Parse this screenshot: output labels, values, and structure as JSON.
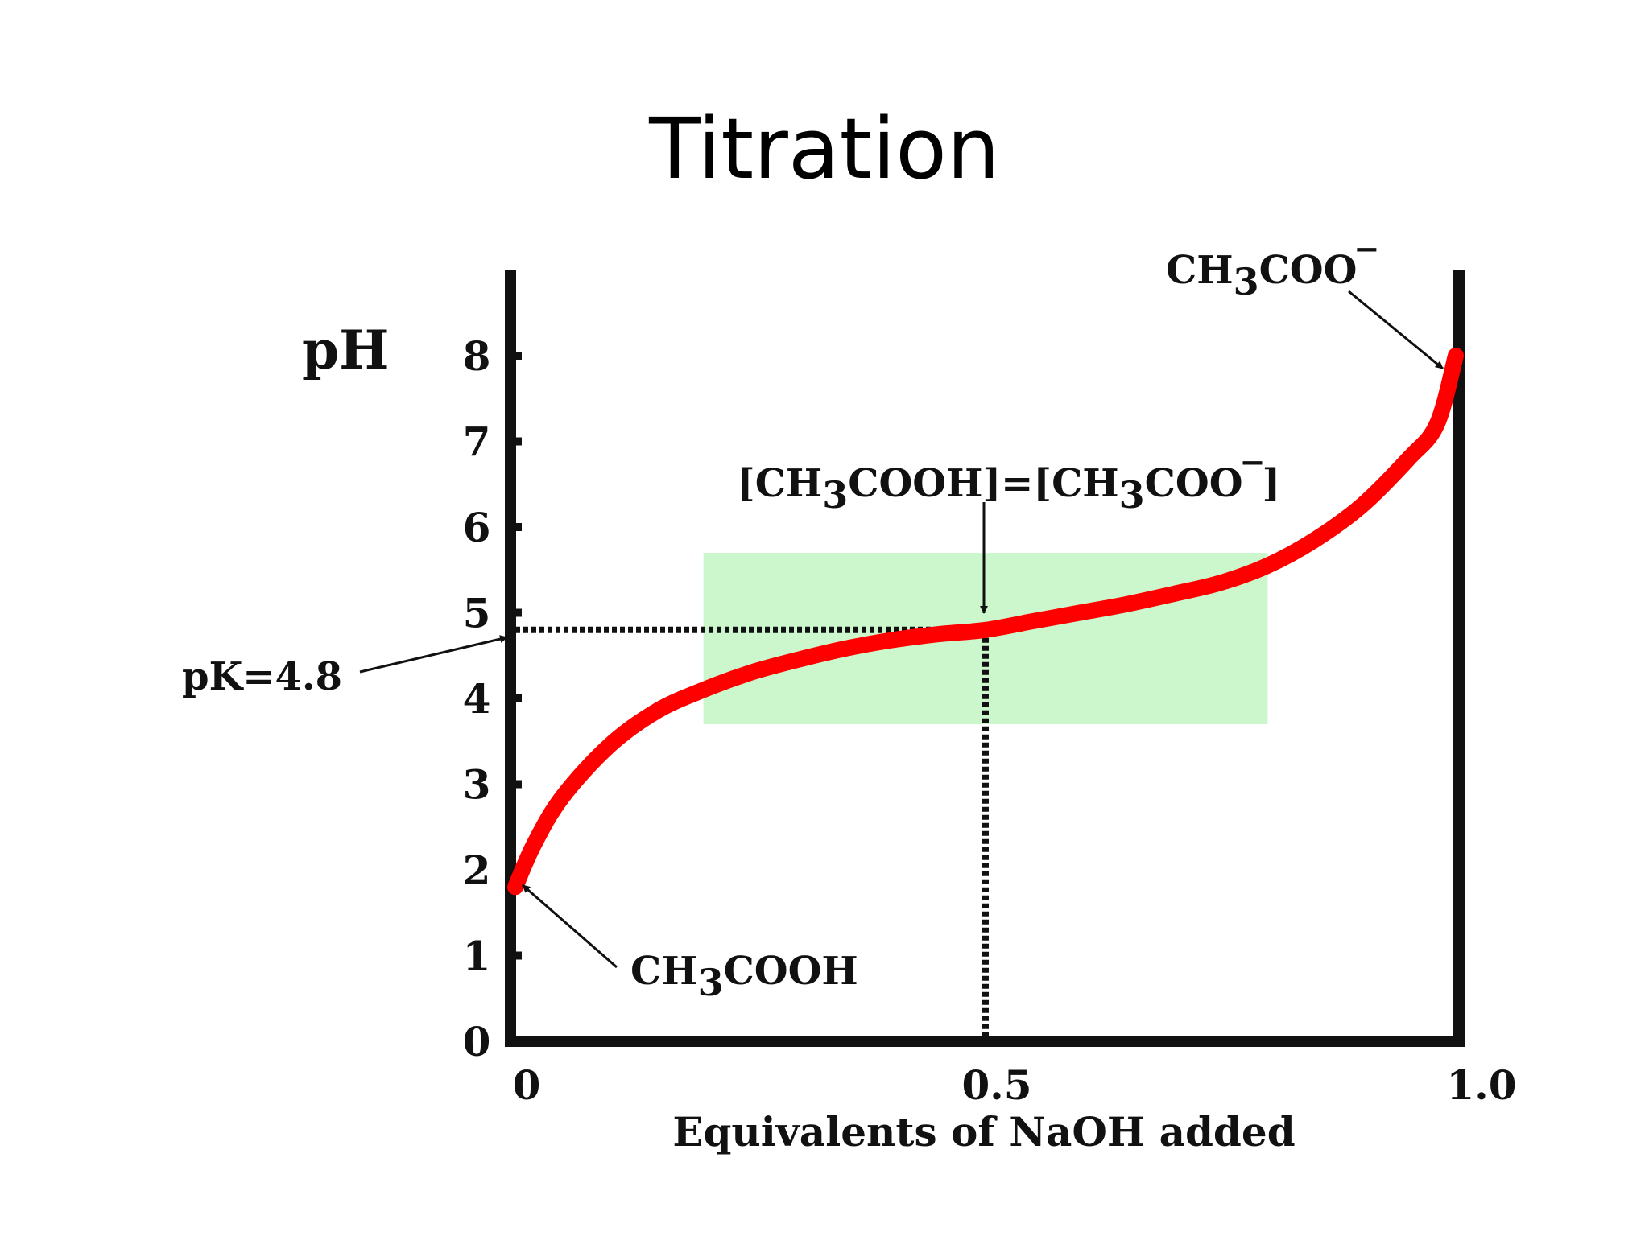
{
  "slide": {
    "title": "Titration"
  },
  "chart_data": {
    "type": "line",
    "title": "Titration",
    "xlabel": "Equivalents of NaOH added",
    "ylabel": "pH",
    "xlim": [
      0,
      1.0
    ],
    "ylim": [
      0,
      8
    ],
    "x_ticks": [
      "0",
      "0.5",
      "1.0"
    ],
    "y_ticks": [
      "0",
      "1",
      "2",
      "3",
      "4",
      "5",
      "6",
      "7",
      "8"
    ],
    "grid": false,
    "legend": "none",
    "series": [
      {
        "color": "#ff0000",
        "x": [
          0,
          0.02,
          0.05,
          0.1,
          0.15,
          0.2,
          0.25,
          0.3,
          0.35,
          0.4,
          0.45,
          0.5,
          0.55,
          0.6,
          0.65,
          0.7,
          0.75,
          0.8,
          0.85,
          0.9,
          0.95,
          0.98,
          1.0
        ],
        "y": [
          1.8,
          2.3,
          2.85,
          3.45,
          3.85,
          4.1,
          4.3,
          4.45,
          4.58,
          4.68,
          4.75,
          4.8,
          4.9,
          5.0,
          5.1,
          5.22,
          5.35,
          5.55,
          5.85,
          6.25,
          6.8,
          7.2,
          8.0
        ]
      }
    ],
    "buffer_region": {
      "x": [
        0.2,
        0.8
      ],
      "y": [
        3.7,
        5.7
      ],
      "color": "#ccf7cc"
    },
    "pk": {
      "x": 0.5,
      "y": 4.8
    },
    "annotations": {
      "pk_label": "pK=4.8",
      "midpoint_label": "[CH3COOH]=[CH3COO-]",
      "acid_label": "CH3COOH",
      "base_label": "CH3COO-"
    }
  }
}
